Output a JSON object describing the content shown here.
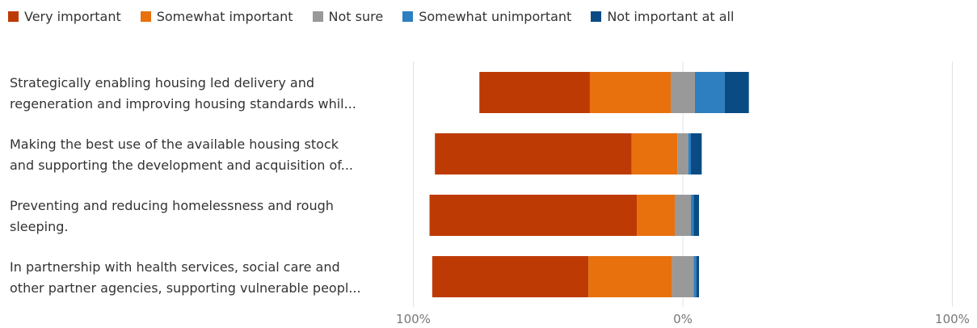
{
  "chart_data": {
    "type": "bar",
    "orientation": "horizontal",
    "stacking": "diverging",
    "xlim": [
      -100,
      100
    ],
    "x_tick_labels": [
      "100%",
      "0%",
      "100%"
    ],
    "grid": true,
    "legend_position": "top",
    "categories": [
      [
        "Strategically enabling housing led delivery and",
        "regeneration and improving housing standards whil..."
      ],
      [
        "Making the best use of the available housing stock",
        "and supporting the development and acquisition of..."
      ],
      [
        "Preventing and reducing homelessness and rough",
        "sleeping."
      ],
      [
        "In partnership with health services, social care and",
        "other partner agencies, supporting vulnerable peopl..."
      ]
    ],
    "series": [
      {
        "name": "Very important",
        "color": "#be3a05",
        "side": "negative",
        "values": [
          41,
          73,
          77,
          58
        ]
      },
      {
        "name": "Somewhat important",
        "color": "#e8710d",
        "side": "negative",
        "values": [
          30,
          17,
          14,
          31
        ]
      },
      {
        "name": "Not sure",
        "color": "#999999",
        "side": "neutral",
        "values": [
          9,
          4,
          6,
          8
        ]
      },
      {
        "name": "Somewhat unimportant",
        "color": "#2e7fc0",
        "side": "positive",
        "values": [
          11,
          1,
          1,
          1
        ]
      },
      {
        "name": "Not important at all",
        "color": "#0b4b84",
        "side": "positive",
        "values": [
          9,
          4,
          2,
          1
        ]
      }
    ]
  }
}
